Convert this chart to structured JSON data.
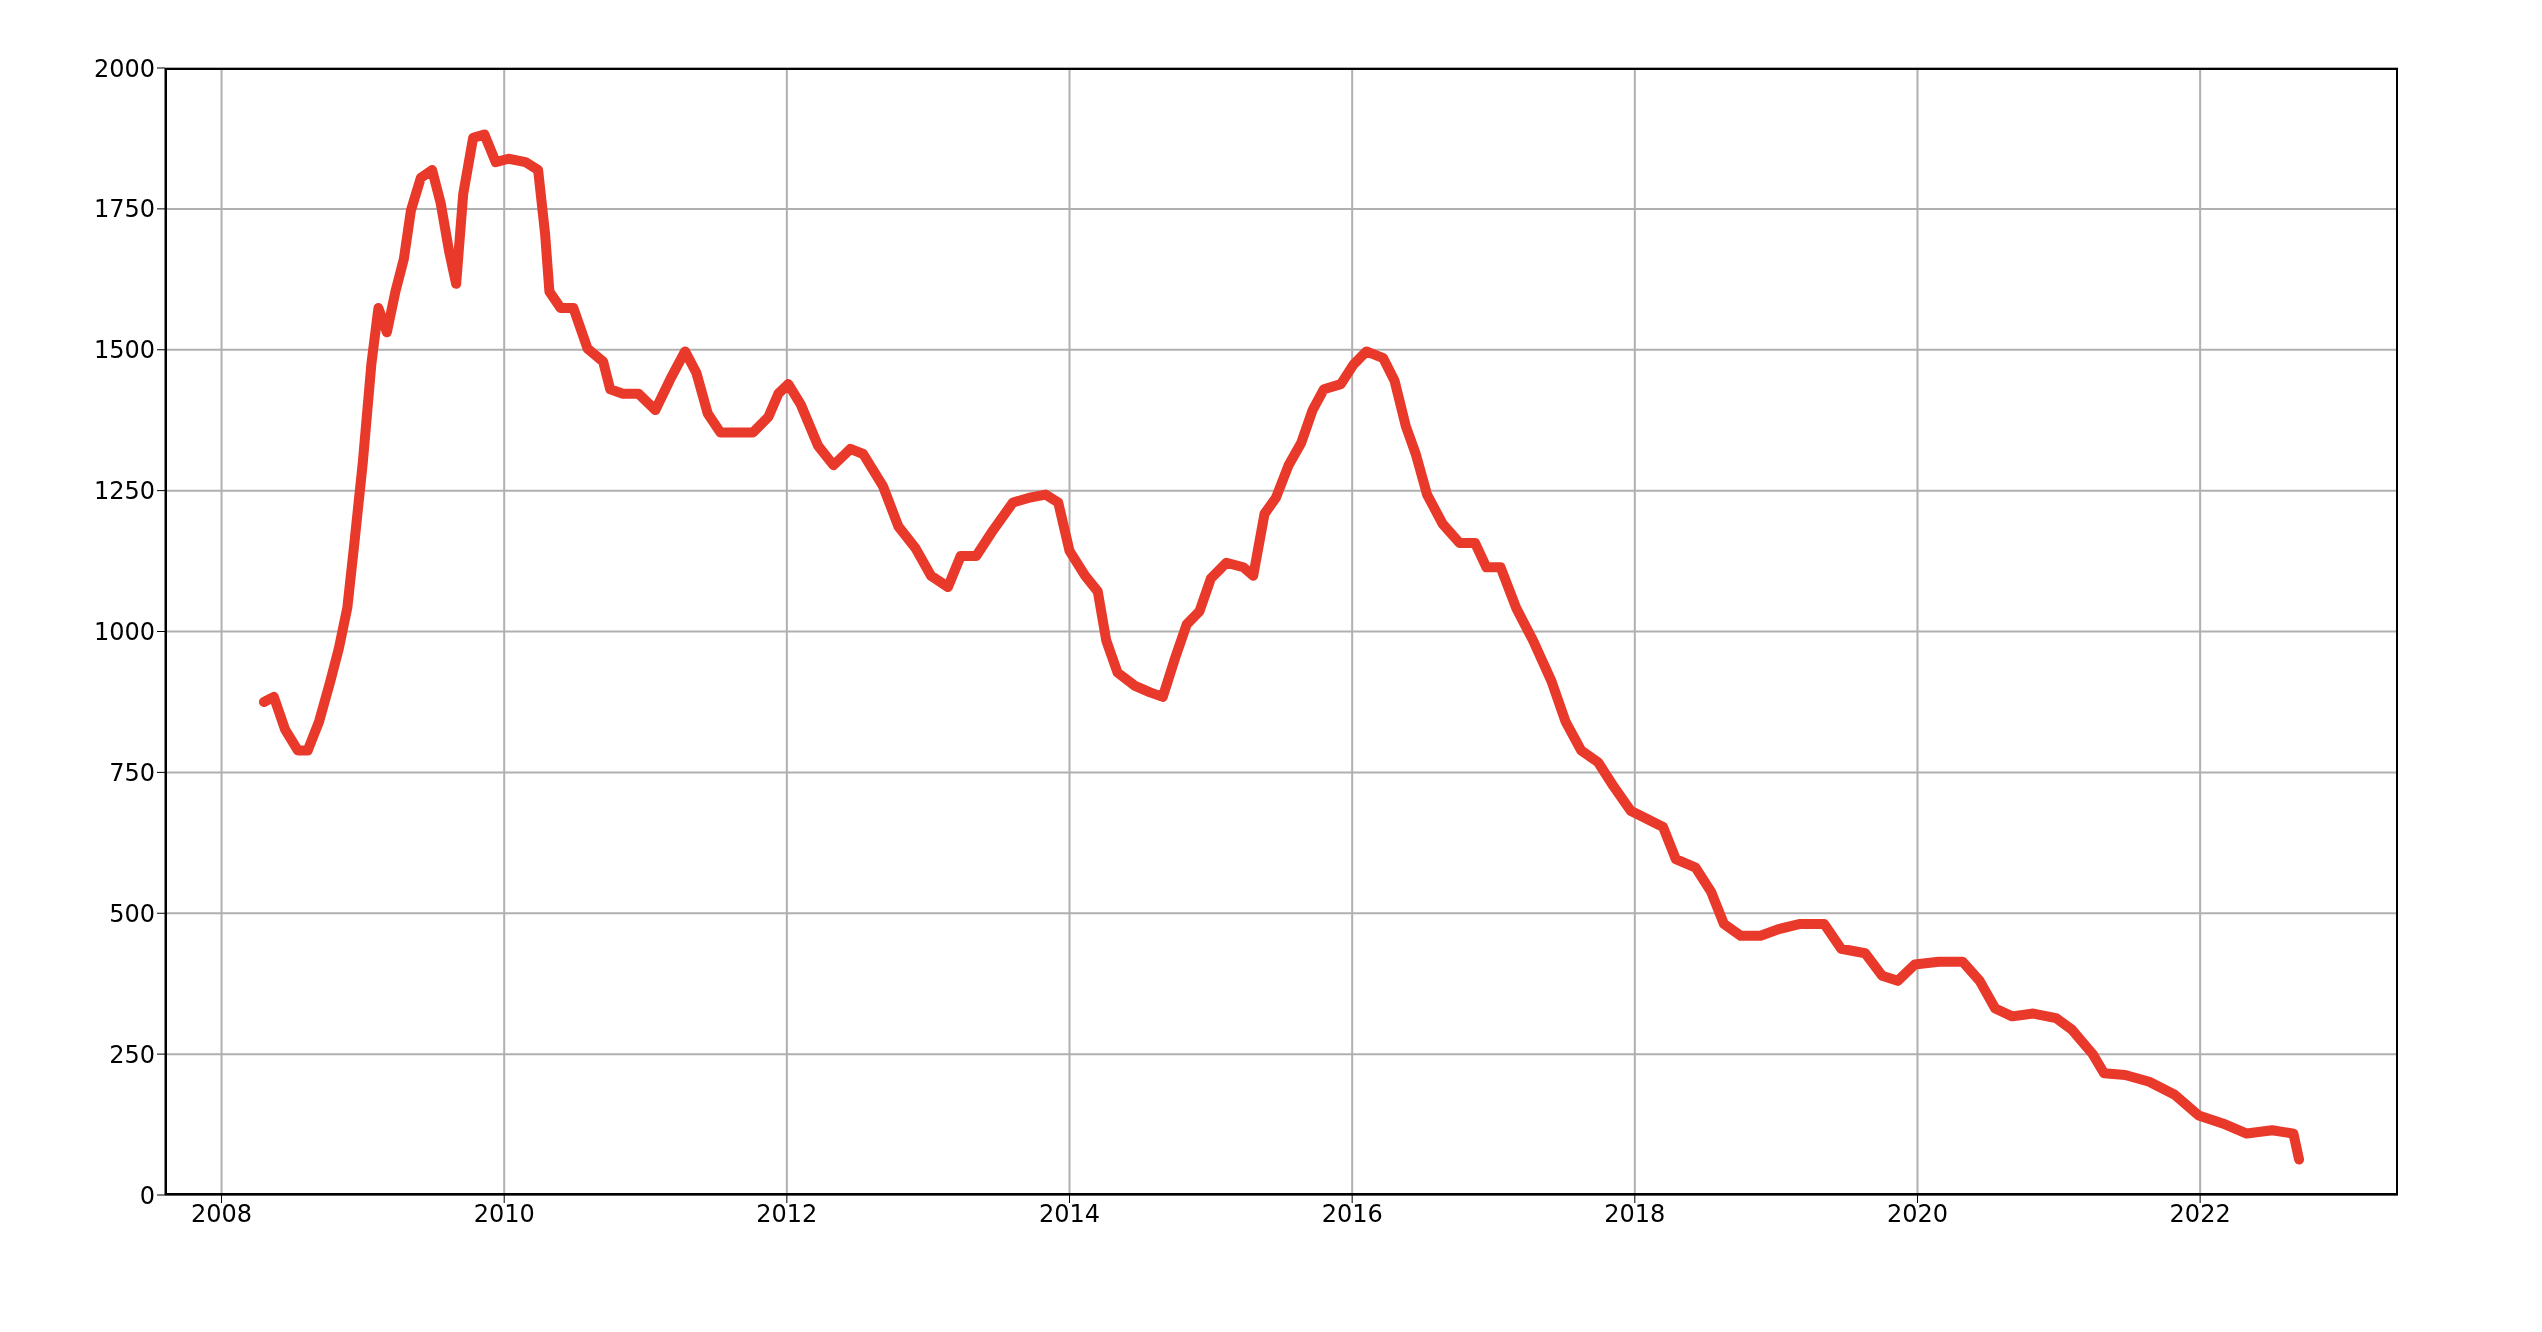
{
  "chart_data": {
    "type": "line",
    "xlim": [
      2007.6,
      2023.4
    ],
    "xticks": [
      2008,
      2010,
      2012,
      2014,
      2016,
      2018,
      2020,
      2022
    ],
    "ylim": [
      0,
      2000
    ],
    "yticks": [
      0,
      250,
      500,
      750,
      1000,
      1250,
      1500,
      1750,
      2000
    ],
    "grid": true,
    "line_style": "solid",
    "marker": "none",
    "series": [
      {
        "color": "#e8392a",
        "x": [
          2008.3,
          2008.37,
          2008.45,
          2008.54,
          2008.61,
          2008.69,
          2008.77,
          2008.83,
          2008.89,
          2008.94,
          2009.0,
          2009.06,
          2009.11,
          2009.17,
          2009.23,
          2009.29,
          2009.34,
          2009.41,
          2009.49,
          2009.55,
          2009.61,
          2009.66,
          2009.71,
          2009.78,
          2009.86,
          2009.94,
          2010.03,
          2010.15,
          2010.24,
          2010.29,
          2010.32,
          2010.4,
          2010.49,
          2010.59,
          2010.7,
          2010.75,
          2010.84,
          2010.95,
          2011.07,
          2011.18,
          2011.28,
          2011.36,
          2011.44,
          2011.53,
          2011.64,
          2011.76,
          2011.87,
          2011.94,
          2012.01,
          2012.1,
          2012.22,
          2012.33,
          2012.45,
          2012.54,
          2012.68,
          2012.79,
          2012.91,
          2013.02,
          2013.14,
          2013.23,
          2013.34,
          2013.46,
          2013.6,
          2013.71,
          2013.83,
          2013.92,
          2014.0,
          2014.11,
          2014.2,
          2014.26,
          2014.34,
          2014.46,
          2014.57,
          2014.66,
          2014.75,
          2014.83,
          2014.92,
          2015.0,
          2015.11,
          2015.23,
          2015.3,
          2015.38,
          2015.46,
          2015.55,
          2015.64,
          2015.72,
          2015.8,
          2015.92,
          2016.01,
          2016.1,
          2016.22,
          2016.3,
          2016.38,
          2016.45,
          2016.53,
          2016.64,
          2016.76,
          2016.87,
          2016.95,
          2017.05,
          2017.16,
          2017.28,
          2017.41,
          2017.51,
          2017.62,
          2017.74,
          2017.85,
          2017.97,
          2018.08,
          2018.2,
          2018.29,
          2018.43,
          2018.54,
          2018.63,
          2018.75,
          2018.89,
          2019.02,
          2019.17,
          2019.34,
          2019.46,
          2019.63,
          2019.75,
          2019.86,
          2019.98,
          2020.15,
          2020.32,
          2020.44,
          2020.55,
          2020.67,
          2020.82,
          2020.98,
          2021.09,
          2021.24,
          2021.32,
          2021.47,
          2021.64,
          2021.82,
          2021.99,
          2022.16,
          2022.33,
          2022.51,
          2022.66,
          2022.7
        ],
        "values": [
          875,
          884,
          826,
          789,
          789,
          840,
          912,
          970,
          1042,
          1157,
          1301,
          1474,
          1574,
          1531,
          1603,
          1661,
          1747,
          1805,
          1819,
          1761,
          1675,
          1617,
          1776,
          1876,
          1882,
          1833,
          1839,
          1833,
          1819,
          1704,
          1603,
          1574,
          1574,
          1502,
          1479,
          1430,
          1422,
          1422,
          1393,
          1450,
          1497,
          1459,
          1387,
          1353,
          1353,
          1353,
          1381,
          1422,
          1439,
          1402,
          1330,
          1295,
          1324,
          1315,
          1258,
          1186,
          1148,
          1099,
          1079,
          1134,
          1134,
          1180,
          1229,
          1237,
          1243,
          1229,
          1143,
          1099,
          1071,
          984,
          927,
          904,
          892,
          884,
          955,
          1013,
          1036,
          1094,
          1122,
          1114,
          1099,
          1209,
          1237,
          1295,
          1335,
          1393,
          1430,
          1439,
          1474,
          1497,
          1485,
          1445,
          1364,
          1315,
          1243,
          1191,
          1157,
          1157,
          1114,
          1114,
          1042,
          984,
          912,
          840,
          789,
          768,
          725,
          682,
          668,
          653,
          596,
          581,
          538,
          481,
          460,
          460,
          472,
          481,
          481,
          437,
          429,
          389,
          380,
          409,
          414,
          414,
          380,
          331,
          317,
          322,
          314,
          294,
          250,
          216,
          213,
          201,
          178,
          141,
          127,
          109,
          115,
          109,
          63
        ]
      }
    ]
  }
}
